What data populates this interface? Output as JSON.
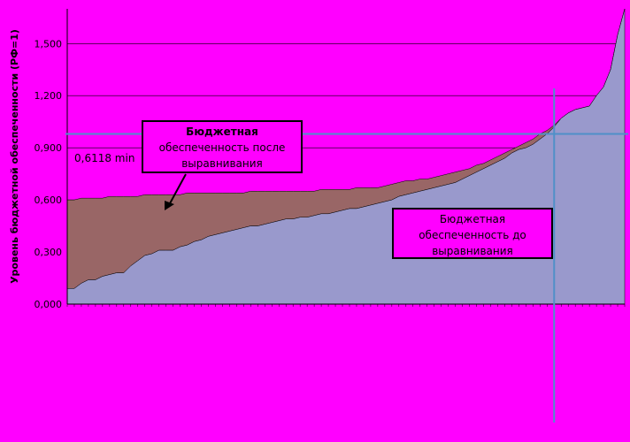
{
  "chart_data": {
    "type": "area",
    "ylabel": "Уровень бюджетной обеспеченности (РФ=1)",
    "yticks": [
      "0,000",
      "0,300",
      "0,600",
      "0,900",
      "1,200",
      "1,500"
    ],
    "ylim": [
      0,
      1.7
    ],
    "x_count": 80,
    "reference_x_index": 69,
    "reference_y": 0.98,
    "series": [
      {
        "values": [
          0.09,
          0.09,
          0.12,
          0.14,
          0.14,
          0.16,
          0.17,
          0.18,
          0.18,
          0.22,
          0.25,
          0.28,
          0.29,
          0.31,
          0.31,
          0.31,
          0.33,
          0.34,
          0.36,
          0.37,
          0.39,
          0.4,
          0.41,
          0.42,
          0.43,
          0.44,
          0.45,
          0.45,
          0.46,
          0.47,
          0.48,
          0.49,
          0.49,
          0.5,
          0.5,
          0.51,
          0.52,
          0.52,
          0.53,
          0.54,
          0.55,
          0.55,
          0.56,
          0.57,
          0.58,
          0.59,
          0.6,
          0.62,
          0.63,
          0.64,
          0.65,
          0.66,
          0.67,
          0.68,
          0.69,
          0.7,
          0.72,
          0.74,
          0.76,
          0.78,
          0.8,
          0.82,
          0.84,
          0.87,
          0.89,
          0.9,
          0.92,
          0.95,
          0.98,
          1.02,
          1.07,
          1.1,
          1.12,
          1.13,
          1.14,
          1.2,
          1.25,
          1.35,
          1.55,
          1.7
        ]
      },
      {
        "values": [
          0.6,
          0.6,
          0.61,
          0.61,
          0.61,
          0.61,
          0.62,
          0.62,
          0.62,
          0.62,
          0.62,
          0.63,
          0.63,
          0.63,
          0.63,
          0.63,
          0.63,
          0.64,
          0.64,
          0.64,
          0.64,
          0.64,
          0.64,
          0.64,
          0.64,
          0.64,
          0.65,
          0.65,
          0.65,
          0.65,
          0.65,
          0.65,
          0.65,
          0.65,
          0.65,
          0.65,
          0.66,
          0.66,
          0.66,
          0.66,
          0.66,
          0.67,
          0.67,
          0.67,
          0.67,
          0.68,
          0.69,
          0.7,
          0.71,
          0.71,
          0.72,
          0.72,
          0.73,
          0.74,
          0.75,
          0.76,
          0.77,
          0.78,
          0.8,
          0.81,
          0.83,
          0.85,
          0.87,
          0.89,
          0.91,
          0.93,
          0.95,
          0.98,
          1.0,
          1.03,
          1.07,
          1.1,
          1.12,
          1.13,
          1.14,
          1.2,
          1.25,
          1.35,
          1.55,
          1.7
        ]
      }
    ],
    "annotations": {
      "min_label": "0,6118 min",
      "after_box": [
        "Бюджетная",
        "обеспеченность после",
        "выравнивания"
      ],
      "before_box": [
        "Бюджетная",
        "обеспеченность до",
        "выравнивания"
      ]
    },
    "colors": {
      "background": "#ff00ff",
      "before_fill": "#9999cc",
      "after_fill": "#996666",
      "reference_line": "#4f90c8",
      "grid": "#000000"
    },
    "grid": "horizontal"
  }
}
